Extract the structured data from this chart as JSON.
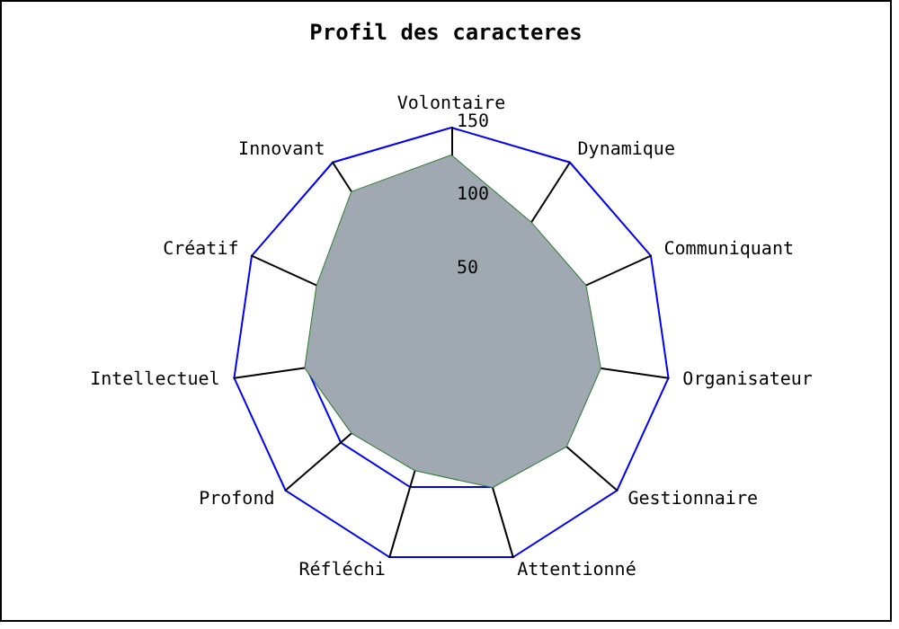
{
  "chart_data": {
    "type": "radar",
    "title": "Profil des caracteres",
    "categories": [
      "Volontaire",
      "Dynamique",
      "Communiquant",
      "Organisateur",
      "Gestionnaire",
      "Attentionné",
      "Réfléchi",
      "Profond",
      "Intellectuel",
      "Créatif",
      "Innovant"
    ],
    "series": [
      {
        "color": "#2e7d32",
        "values": [
          131,
          101,
          101,
          103,
          104,
          100,
          88,
          90,
          101,
          101,
          126
        ]
      }
    ],
    "ylim": [
      0,
      150
    ],
    "yticks": [
      50,
      100,
      150
    ],
    "grid": true
  }
}
